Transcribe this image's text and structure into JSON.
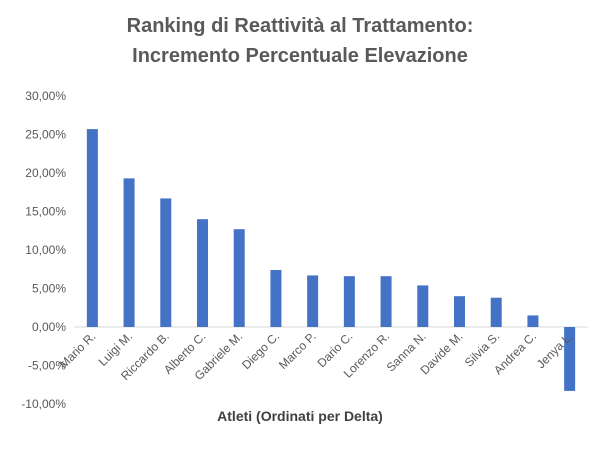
{
  "chart_data": {
    "type": "bar",
    "title_lines": [
      "Ranking di Reattività al Trattamento:",
      "Incremento Percentuale Elevazione"
    ],
    "xlabel": "Atleti (Ordinati per Delta)",
    "ylabel": "",
    "categories": [
      "Mario R.",
      "Luigi M.",
      "Riccardo B.",
      "Alberto C.",
      "Gabriele M.",
      "Diego C.",
      "Marco P.",
      "Dario C.",
      "Lorenzo R.",
      "Sanna N.",
      "Davide M.",
      "Silvia S.",
      "Andrea C.",
      "Jenya L."
    ],
    "values": [
      25.7,
      19.3,
      16.7,
      14.0,
      12.7,
      7.4,
      6.7,
      6.6,
      6.6,
      5.4,
      4.0,
      3.8,
      1.5,
      -8.3
    ],
    "ylim": [
      -10,
      30
    ],
    "yticks": [
      -10,
      -5,
      0,
      5,
      10,
      15,
      20,
      25,
      30
    ],
    "ytick_labels": [
      "-10,00%",
      "-5,00%",
      "0,00%",
      "5,00%",
      "10,00%",
      "15,00%",
      "20,00%",
      "25,00%",
      "30,00%"
    ],
    "bar_color": "#4472C4",
    "grid": false,
    "legend": "none"
  }
}
